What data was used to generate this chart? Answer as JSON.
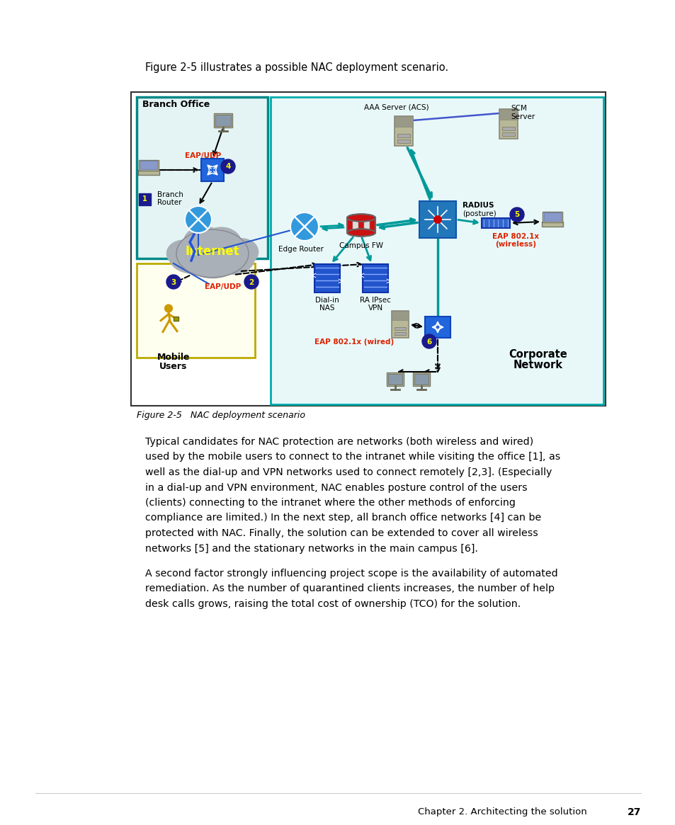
{
  "page_background": "#ffffff",
  "intro_text": "Figure 2-5 illustrates a possible NAC deployment scenario.",
  "figure_caption": "Figure 2-5   NAC deployment scenario",
  "paragraph1": "Typical candidates for NAC protection are networks (both wireless and wired)\nused by the mobile users to connect to the intranet while visiting the office [1], as\nwell as the dial-up and VPN networks used to connect remotely [2,3]. (Especially\nin a dial-up and VPN environment, NAC enables posture control of the users\n(clients) connecting to the intranet where the other methods of enforcing\ncompliance are limited.) In the next step, all branch office networks [4] can be\nprotected with NAC. Finally, the solution can be extended to cover all wireless\nnetworks [5] and the stationary networks in the main campus [6].",
  "paragraph2": "A second factor strongly influencing project scope is the availability of automated\nremediation. As the number of quarantined clients increases, the number of help\ndesk calls grows, raising the total cost of ownership (TCO) for the solution.",
  "footer_text": "Chapter 2. Architecting the solution",
  "page_number": "27"
}
